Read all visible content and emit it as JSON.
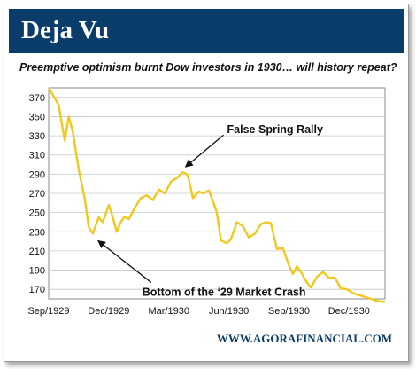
{
  "header": {
    "title": "Deja Vu"
  },
  "subtitle": "Preemptive optimism burnt Dow investors in 1930… will history repeat?",
  "footer": {
    "source": "WWW.AGORAFINANCIAL.COM"
  },
  "colors": {
    "header_bg": "#0b3d6b",
    "line": "#f2c81e",
    "grid": "#c8c8c8",
    "text": "#111111"
  },
  "chart_data": {
    "type": "line",
    "title": "",
    "xlabel": "",
    "ylabel": "",
    "x_tick_labels": [
      "Sep/1929",
      "Dec/1929",
      "Mar/1930",
      "Jun/1930",
      "Sep/1930",
      "Dec/1930"
    ],
    "y_ticks": [
      170,
      190,
      210,
      230,
      250,
      270,
      290,
      310,
      330,
      350,
      370
    ],
    "ylim": [
      160,
      380
    ],
    "grid": "horizontal",
    "series": [
      {
        "name": "",
        "x": [
          0,
          2,
          5,
          8,
          10,
          12,
          15,
          18,
          20,
          22,
          25,
          27,
          30,
          32,
          34,
          36,
          38,
          40,
          43,
          46,
          49,
          52,
          55,
          58,
          61,
          64,
          67,
          69,
          70,
          72,
          75,
          77,
          80,
          82,
          84,
          86,
          89,
          91,
          94,
          97,
          100,
          103,
          106,
          109,
          111,
          114,
          117,
          120,
          122,
          124,
          126,
          129,
          131,
          134,
          137,
          140,
          143,
          146,
          149,
          152,
          155,
          158,
          161,
          164,
          166,
          168
        ],
        "values": [
          380,
          373,
          362,
          325,
          350,
          335,
          295,
          265,
          235,
          228,
          245,
          240,
          258,
          245,
          230,
          240,
          246,
          243,
          255,
          265,
          268,
          263,
          274,
          270,
          282,
          286,
          292,
          290,
          285,
          265,
          272,
          270,
          273,
          262,
          250,
          221,
          218,
          222,
          240,
          236,
          224,
          228,
          238,
          240,
          239,
          212,
          213,
          195,
          186,
          194,
          188,
          177,
          172,
          183,
          188,
          182,
          182,
          171,
          170,
          166,
          164,
          162,
          160,
          158,
          157,
          157
        ]
      }
    ],
    "annotations": [
      {
        "text": "False Spring Rally",
        "x": 67,
        "y": 292
      },
      {
        "text": "Bottom of the ‘29 Market Crash",
        "x": 22,
        "y": 228
      }
    ]
  }
}
